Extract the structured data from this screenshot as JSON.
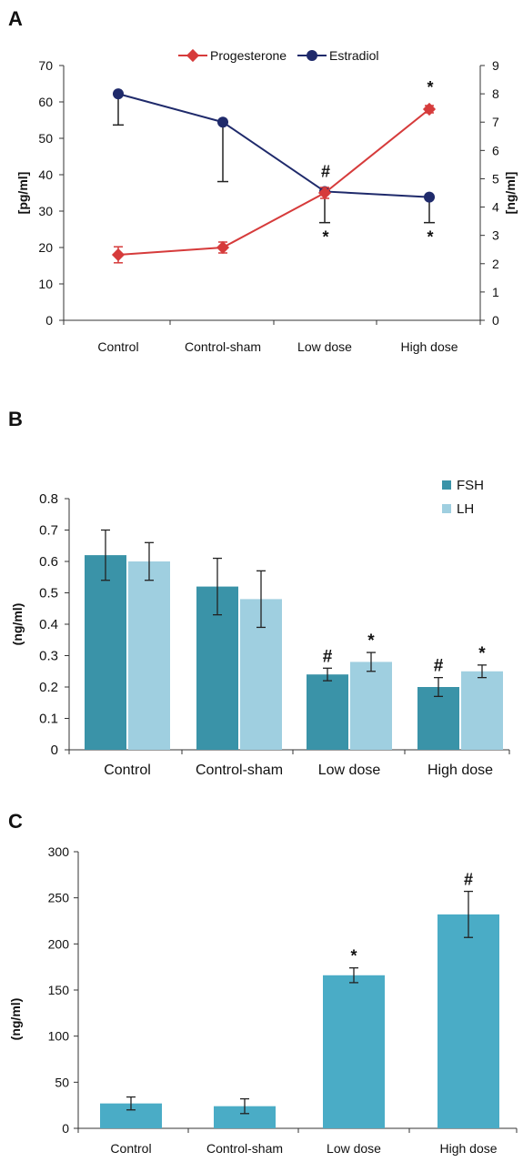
{
  "panels": [
    {
      "letter": "A"
    },
    {
      "letter": "B"
    },
    {
      "letter": "C"
    }
  ],
  "colors": {
    "progesterone": "#d63b3b",
    "estradiol": "#1f2a6b",
    "fsh": "#3a93a8",
    "lh": "#9fcfe0",
    "panel_c_bar": "#4aacc6"
  },
  "chart_data": [
    {
      "type": "line",
      "categories": [
        "Control",
        "Control-sham",
        "Low dose",
        "High dose"
      ],
      "ylabel": "[pg/ml]",
      "y2label": "[ng/ml]",
      "ylim": [
        0,
        70
      ],
      "y2lim": [
        0,
        9
      ],
      "yticks": [
        "0",
        "10",
        "20",
        "30",
        "40",
        "50",
        "60",
        "70"
      ],
      "y2ticks": [
        "0",
        "1",
        "2",
        "3",
        "4",
        "5",
        "6",
        "7",
        "8",
        "9"
      ],
      "legend_position": "top",
      "series": [
        {
          "name": "Progesterone",
          "axis": "left",
          "values": [
            18,
            20,
            35,
            58
          ],
          "errors": [
            2.2,
            1.5,
            1.5,
            1
          ]
        },
        {
          "name": "Estradiol",
          "axis": "right",
          "values": [
            8,
            7,
            4.55,
            4.35
          ],
          "errors_down": [
            1.1,
            2.1,
            1.1,
            0.9
          ],
          "errors_up": [
            0,
            0,
            0,
            0
          ]
        }
      ],
      "annotations": [
        {
          "text": "#",
          "category": "Low dose",
          "series": "Estradiol",
          "position": "above"
        },
        {
          "text": "*",
          "category": "Low dose",
          "series": "Estradiol",
          "position": "below"
        },
        {
          "text": "*",
          "category": "High dose",
          "series": "Progesterone",
          "position": "above"
        },
        {
          "text": "*",
          "category": "High dose",
          "series": "Estradiol",
          "position": "below"
        }
      ]
    },
    {
      "type": "bar",
      "categories": [
        "Control",
        "Control-sham",
        "Low dose",
        "High dose"
      ],
      "ylabel": "(ng/ml)",
      "ylim": [
        0,
        0.8
      ],
      "yticks": [
        "0",
        "0.1",
        "0.2",
        "0.3",
        "0.4",
        "0.5",
        "0.6",
        "0.7",
        "0.8"
      ],
      "legend_position": "top-right",
      "series": [
        {
          "name": "FSH",
          "values": [
            0.62,
            0.52,
            0.24,
            0.2
          ],
          "errors": [
            0.08,
            0.09,
            0.02,
            0.03
          ],
          "marks": [
            "",
            "",
            "#",
            "#"
          ]
        },
        {
          "name": "LH",
          "values": [
            0.6,
            0.48,
            0.28,
            0.25
          ],
          "errors": [
            0.06,
            0.09,
            0.03,
            0.02
          ],
          "marks": [
            "",
            "",
            "*",
            "*"
          ]
        }
      ]
    },
    {
      "type": "bar",
      "categories": [
        "Control",
        "Control-sham",
        "Low dose",
        "High dose"
      ],
      "ylabel": "(ng/ml)",
      "ylim": [
        0,
        300
      ],
      "yticks": [
        "0",
        "50",
        "100",
        "150",
        "200",
        "250",
        "300"
      ],
      "values": [
        27,
        24,
        166,
        232
      ],
      "errors": [
        7,
        8,
        8,
        25
      ],
      "marks": [
        "",
        "",
        "*",
        "#"
      ]
    }
  ]
}
